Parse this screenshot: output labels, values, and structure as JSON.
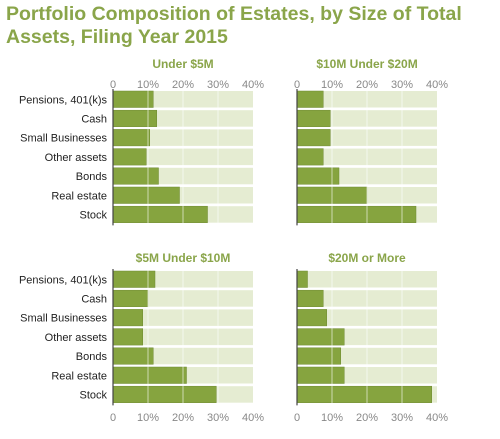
{
  "title": "Portfolio Composition of Estates, by Size of Total Assets, Filing Year 2015",
  "chart_data": [
    {
      "type": "bar",
      "orientation": "horizontal",
      "title": "Under $5M",
      "categories": [
        "Pensions, 401(k)s",
        "Cash",
        "Small Businesses",
        "Other assets",
        "Bonds",
        "Real estate",
        "Stock"
      ],
      "values": [
        11.5,
        12.5,
        10.5,
        9.5,
        13,
        19,
        27
      ],
      "xlim": [
        0,
        40
      ],
      "xticks": [
        "0",
        "10%",
        "20%",
        "30%",
        "40%"
      ]
    },
    {
      "type": "bar",
      "orientation": "horizontal",
      "title": "$10M Under $20M",
      "categories": [
        "Pensions, 401(k)s",
        "Cash",
        "Small Businesses",
        "Other assets",
        "Bonds",
        "Real estate",
        "Stock"
      ],
      "values": [
        7.5,
        9.5,
        9.5,
        7.5,
        12,
        20,
        34
      ],
      "xlim": [
        0,
        40
      ],
      "xticks": [
        "0",
        "10%",
        "20%",
        "30%",
        "40%"
      ]
    },
    {
      "type": "bar",
      "orientation": "horizontal",
      "title": "$5M Under $10M",
      "categories": [
        "Pensions, 401(k)s",
        "Cash",
        "Small Businesses",
        "Other assets",
        "Bonds",
        "Real estate",
        "Stock"
      ],
      "values": [
        12,
        10,
        8.5,
        8.5,
        11.5,
        21,
        29.5
      ],
      "xlim": [
        0,
        40
      ],
      "xticks": [
        "0",
        "10%",
        "20%",
        "30%",
        "40%"
      ]
    },
    {
      "type": "bar",
      "orientation": "horizontal",
      "title": "$20M or More",
      "categories": [
        "Pensions, 401(k)s",
        "Cash",
        "Small Businesses",
        "Other assets",
        "Bonds",
        "Real estate",
        "Stock"
      ],
      "values": [
        3,
        7.5,
        8.5,
        13.5,
        12.5,
        13.5,
        38.5
      ],
      "xlim": [
        0,
        40
      ],
      "xticks": [
        "0",
        "10%",
        "20%",
        "30%",
        "40%"
      ]
    }
  ],
  "colors": {
    "title": "#8aa54a",
    "bar": "#86a43f",
    "bar_stroke": "#6f8a32",
    "track": "#e5ecd2",
    "grid": "#ffffff",
    "axis": "#444444",
    "label": "#222222",
    "tick": "#888888",
    "panel_title": "#8aa54a"
  }
}
